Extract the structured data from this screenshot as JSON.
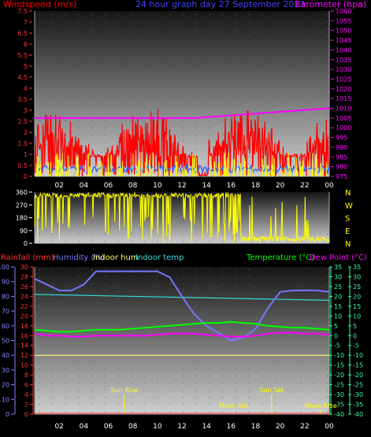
{
  "title": "24 hour graph day  27 September 2013",
  "colors": {
    "wind": "#ff0000",
    "gust_marks": "#ffff00",
    "avg_wind": "#3366ff",
    "pressure": "#ff00ff",
    "direction": "#ffff00",
    "rain_axis": "#ff3333",
    "humidity": "#7777ff",
    "temp": "#00ff00",
    "dew": "#ff00ff",
    "indoor_temp": "#33dddd",
    "indoor_hum": "#ffff66",
    "right_axis": "#33ff99",
    "pale_axis": "#8888ff",
    "label_blue": "#4444ff"
  },
  "x_ticks": [
    "02",
    "04",
    "06",
    "08",
    "10",
    "12",
    "14",
    "16",
    "18",
    "20",
    "22",
    "00"
  ],
  "chart_data": [
    {
      "type": "line",
      "name": "wind-panel",
      "left_axis_label": "Windspeed (m/s)",
      "right_axis_label": "Barometer (hpa)",
      "ylim_left": [
        0,
        7.5
      ],
      "left_ticks": [
        "0",
        "0.5",
        "1",
        "1.5",
        "2",
        "2.5",
        "3",
        "3.5",
        "4",
        "4.5",
        "5",
        "5.5",
        "6",
        "6.5",
        "7",
        "7.5"
      ],
      "ylim_right": [
        975,
        1060
      ],
      "right_ticks": [
        "975",
        "980",
        "985",
        "990",
        "995",
        "1000",
        "1005",
        "1010",
        "1015",
        "1020",
        "1025",
        "1030",
        "1035",
        "1040",
        "1045",
        "1050",
        "1055",
        "1060"
      ],
      "barometer": {
        "x": [
          0,
          13,
          24
        ],
        "y": [
          1005,
          1005,
          1010
        ]
      }
    },
    {
      "type": "line",
      "name": "direction-panel",
      "ylim": [
        0,
        360
      ],
      "left_ticks": [
        "0",
        "90",
        "180",
        "270",
        "360"
      ],
      "compass": [
        "N",
        "W",
        "S",
        "E",
        "N"
      ]
    },
    {
      "type": "line",
      "name": "temp-panel",
      "labels": {
        "rain": "Rainfall (mm)",
        "humidity": "Humidity (%)",
        "indoor_hum": "Indoor hum",
        "indoor_temp": "Indoor temp",
        "temp": "Temperature (°C)",
        "dew": "Dew Point (°C)"
      },
      "humidity_ticks": [
        "0",
        "10",
        "20",
        "30",
        "40",
        "50",
        "60",
        "70",
        "80",
        "90",
        "100"
      ],
      "rain_ticks": [
        "0",
        "2",
        "4",
        "6",
        "8",
        "10",
        "12",
        "14",
        "16",
        "18",
        "20",
        "22",
        "24",
        "26",
        "28",
        "30"
      ],
      "temp_ticks": [
        "-40",
        "-35",
        "-30",
        "-25",
        "-20",
        "-15",
        "-10",
        "-5",
        "0",
        "5",
        "10",
        "15",
        "20",
        "25",
        "30",
        "35"
      ],
      "humidity": {
        "x": [
          0,
          1,
          2,
          3,
          4,
          5,
          6,
          7,
          8,
          9,
          10,
          11,
          12,
          13,
          14,
          15,
          16,
          17,
          18,
          19,
          20,
          21,
          22,
          23,
          24
        ],
        "y": [
          92,
          88,
          84,
          84,
          88,
          97,
          97,
          97,
          97,
          97,
          97,
          93,
          80,
          68,
          60,
          55,
          50,
          52,
          58,
          72,
          83,
          84,
          84,
          84,
          83
        ]
      },
      "indoor_temp": {
        "x": [
          0,
          24
        ],
        "y": [
          21,
          18
        ]
      },
      "temperature": {
        "x": [
          0,
          1,
          2,
          3,
          4,
          5,
          6,
          7,
          8,
          9,
          10,
          11,
          12,
          13,
          14,
          15,
          16,
          17,
          18,
          19,
          20,
          21,
          22,
          23,
          24
        ],
        "y": [
          3,
          2.5,
          2,
          2,
          2.5,
          3,
          3,
          3,
          3.5,
          4,
          4.5,
          5,
          5.5,
          6,
          6.5,
          6.5,
          7,
          6.5,
          6,
          5,
          4.5,
          4,
          4,
          3.5,
          3
        ]
      },
      "dew_point": {
        "x": [
          0,
          1,
          2,
          3,
          4,
          5,
          6,
          7,
          8,
          9,
          10,
          11,
          12,
          13,
          14,
          15,
          16,
          17,
          18,
          19,
          20,
          21,
          22,
          23,
          24
        ],
        "y": [
          1,
          0,
          0,
          -0.5,
          -0.5,
          0,
          0,
          0,
          0,
          0,
          0.5,
          1,
          1,
          1,
          0.5,
          0,
          -0.5,
          -0.5,
          0,
          1,
          1.5,
          1.5,
          1,
          1,
          0.5
        ]
      },
      "indoor_hum": {
        "x": [
          0,
          24
        ],
        "y": [
          40,
          40
        ]
      },
      "events": [
        {
          "label": "Sun Rise",
          "hour": 7.3
        },
        {
          "label": "Moon Set",
          "hour": 16.2
        },
        {
          "label": "Sun Set",
          "hour": 19.3
        },
        {
          "label": "Moon Rise",
          "hour": 23.3
        }
      ]
    }
  ]
}
